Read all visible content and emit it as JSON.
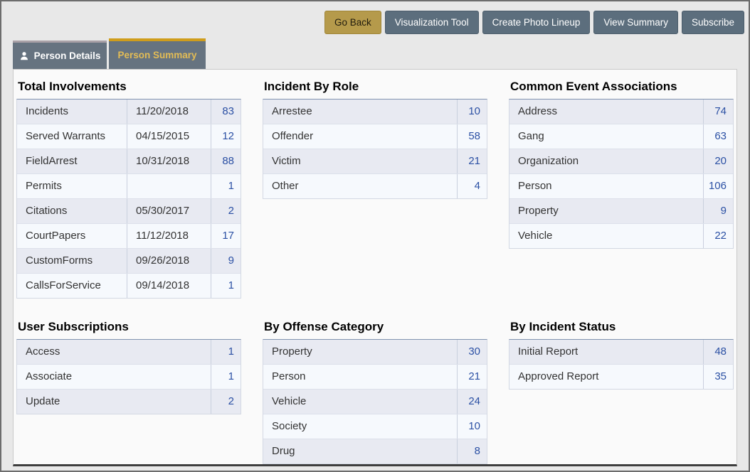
{
  "colors": {
    "accent_gold": "#cf9d1c",
    "gold_button": "#b59a4b",
    "slate_button": "#5c6e7d",
    "tab_slate": "#667380",
    "link_blue": "#2b50a4",
    "row_stripe": "#e8eaf2"
  },
  "toolbar": {
    "buttons": [
      {
        "id": "go-back",
        "label": "Go Back",
        "style": "gold"
      },
      {
        "id": "visualization-tool",
        "label": "Visualization Tool",
        "style": "slate"
      },
      {
        "id": "create-photo-lineup",
        "label": "Create Photo Lineup",
        "style": "slate"
      },
      {
        "id": "view-summary",
        "label": "View Summary",
        "style": "slate"
      },
      {
        "id": "subscribe",
        "label": "Subscribe",
        "style": "slate"
      }
    ]
  },
  "tabs": [
    {
      "id": "person-details",
      "label": "Person Details",
      "icon": "person-icon",
      "active": false
    },
    {
      "id": "person-summary",
      "label": "Person Summary",
      "active": true
    }
  ],
  "panels": [
    {
      "id": "total-involvements",
      "title": "Total Involvements",
      "has_date": true,
      "rows": [
        {
          "label": "Incidents",
          "date": "11/20/2018",
          "count": 83
        },
        {
          "label": "Served Warrants",
          "date": "04/15/2015",
          "count": 12
        },
        {
          "label": "FieldArrest",
          "date": "10/31/2018",
          "count": 88
        },
        {
          "label": "Permits",
          "date": "",
          "count": 1
        },
        {
          "label": "Citations",
          "date": "05/30/2017",
          "count": 2
        },
        {
          "label": "CourtPapers",
          "date": "11/12/2018",
          "count": 17
        },
        {
          "label": "CustomForms",
          "date": "09/26/2018",
          "count": 9
        },
        {
          "label": "CallsForService",
          "date": "09/14/2018",
          "count": 1
        }
      ]
    },
    {
      "id": "incident-by-role",
      "title": "Incident By Role",
      "has_date": false,
      "rows": [
        {
          "label": "Arrestee",
          "count": 10
        },
        {
          "label": "Offender",
          "count": 58
        },
        {
          "label": "Victim",
          "count": 21
        },
        {
          "label": "Other",
          "count": 4
        }
      ]
    },
    {
      "id": "common-event-associations",
      "title": "Common Event Associations",
      "has_date": false,
      "rows": [
        {
          "label": "Address",
          "count": 74
        },
        {
          "label": "Gang",
          "count": 63
        },
        {
          "label": "Organization",
          "count": 20
        },
        {
          "label": "Person",
          "count": 106
        },
        {
          "label": "Property",
          "count": 9
        },
        {
          "label": "Vehicle",
          "count": 22
        }
      ]
    },
    {
      "id": "user-subscriptions",
      "title": "User Subscriptions",
      "has_date": false,
      "rows": [
        {
          "label": "Access",
          "count": 1
        },
        {
          "label": "Associate",
          "count": 1
        },
        {
          "label": "Update",
          "count": 2
        }
      ]
    },
    {
      "id": "by-offense-category",
      "title": "By Offense Category",
      "has_date": false,
      "rows": [
        {
          "label": "Property",
          "count": 30
        },
        {
          "label": "Person",
          "count": 21
        },
        {
          "label": "Vehicle",
          "count": 24
        },
        {
          "label": "Society",
          "count": 10
        },
        {
          "label": "Drug",
          "count": 8
        }
      ]
    },
    {
      "id": "by-incident-status",
      "title": "By Incident Status",
      "has_date": false,
      "rows": [
        {
          "label": "Initial Report",
          "count": 48
        },
        {
          "label": "Approved Report",
          "count": 35
        }
      ]
    }
  ]
}
